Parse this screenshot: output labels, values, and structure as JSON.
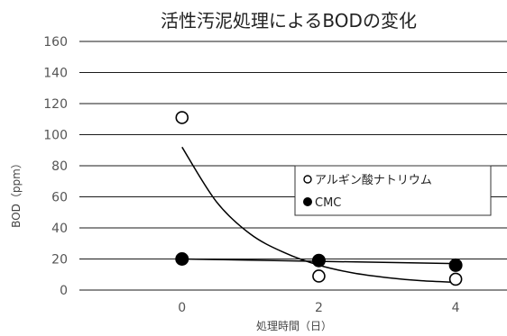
{
  "chart_data": {
    "type": "scatter",
    "title": "活性汚泥処理によるBODの変化",
    "xlabel": "処理時間（日）",
    "ylabel": "BOD（ppm）",
    "x_ticks": [
      0,
      2,
      4
    ],
    "y_ticks": [
      0,
      20,
      40,
      60,
      80,
      100,
      120,
      140,
      160
    ],
    "xlim": [
      -1.5,
      4.75
    ],
    "ylim": [
      0,
      160
    ],
    "grid": {
      "horizontal": true,
      "vertical": false
    },
    "legend_placement": "center-right",
    "series": [
      {
        "name": "アルギン酸ナトリウム",
        "marker": "open-circle",
        "color": "#000000",
        "points": [
          {
            "x": 0,
            "y": 111
          },
          {
            "x": 2,
            "y": 9
          },
          {
            "x": 4,
            "y": 7
          }
        ],
        "trendline": {
          "type": "exponential",
          "points": [
            {
              "x": 0,
              "y": 92
            },
            {
              "x": 0.5,
              "y": 57
            },
            {
              "x": 1,
              "y": 36
            },
            {
              "x": 1.5,
              "y": 24
            },
            {
              "x": 2,
              "y": 16
            },
            {
              "x": 2.5,
              "y": 11
            },
            {
              "x": 3,
              "y": 8
            },
            {
              "x": 3.5,
              "y": 6
            },
            {
              "x": 4,
              "y": 5
            }
          ]
        }
      },
      {
        "name": "CMC",
        "marker": "filled-circle",
        "color": "#000000",
        "points": [
          {
            "x": 0,
            "y": 20
          },
          {
            "x": 2,
            "y": 19
          },
          {
            "x": 4,
            "y": 16
          }
        ],
        "trendline": {
          "type": "linear",
          "points": [
            {
              "x": 0,
              "y": 20
            },
            {
              "x": 4,
              "y": 17
            }
          ]
        }
      }
    ]
  }
}
